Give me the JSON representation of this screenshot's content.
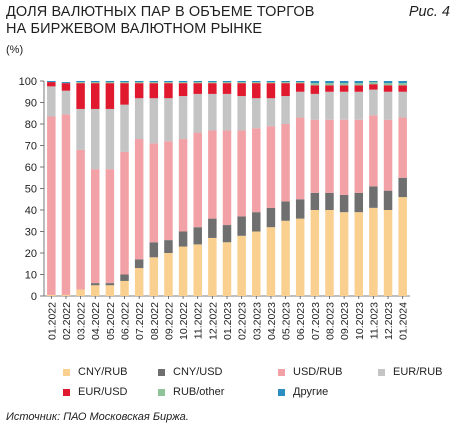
{
  "header": {
    "title_line1": "ДОЛЯ ВАЛЮТНЫХ ПАР В ОБЪЕМЕ ТОРГОВ",
    "title_line2": "НА БИРЖЕВОМ ВАЛЮТНОМ РЫНКЕ",
    "figure_label": "Рис. 4",
    "unit": "(%)"
  },
  "source": "Источник: ПАО Московская Биржа.",
  "chart_data": {
    "type": "bar",
    "stacked": true,
    "ylim": [
      0,
      100
    ],
    "yticks": [
      0,
      10,
      20,
      30,
      40,
      50,
      60,
      70,
      80,
      90,
      100
    ],
    "grid": false,
    "legend_position": "bottom",
    "categories": [
      "01.2022",
      "02.2022",
      "03.2022",
      "04.2022",
      "05.2022",
      "06.2022",
      "07.2022",
      "08.2022",
      "09.2022",
      "10.2022",
      "11.2022",
      "12.2022",
      "01.2023",
      "02.2023",
      "03.2023",
      "04.2023",
      "05.2023",
      "06.2023",
      "07.2023",
      "08.2023",
      "09.2023",
      "10.2023",
      "11.2023",
      "12.2023",
      "01.2024"
    ],
    "series": [
      {
        "name": "CNY/RUB",
        "color": "#f9d08f",
        "values": [
          0.5,
          0.5,
          3,
          5,
          5,
          7,
          13,
          18,
          20,
          23,
          24,
          27,
          25,
          28,
          30,
          32,
          35,
          36,
          40,
          40,
          39,
          39,
          41,
          40,
          46
        ]
      },
      {
        "name": "CNY/USD",
        "color": "#6f6f6f",
        "values": [
          0,
          0,
          0,
          1,
          1,
          3,
          4,
          7,
          6,
          7,
          8,
          9,
          8,
          9,
          9,
          9,
          9,
          9,
          8,
          8,
          8,
          9,
          10,
          9,
          9
        ]
      },
      {
        "name": "USD/RUB",
        "color": "#f2a1a6",
        "values": [
          83,
          84,
          65,
          53,
          53,
          57,
          56,
          46,
          46,
          43,
          44,
          41,
          44,
          40,
          39,
          38,
          36,
          38,
          34,
          34,
          35,
          34,
          33,
          33,
          28
        ]
      },
      {
        "name": "EUR/RUB",
        "color": "#c4c4c4",
        "values": [
          14,
          11,
          19,
          28,
          28,
          22,
          19,
          21,
          20,
          20,
          18,
          17,
          17,
          16,
          14,
          13,
          13,
          12,
          12,
          13,
          13,
          13,
          12,
          13,
          12
        ]
      },
      {
        "name": "EUR/USD",
        "color": "#e1192f",
        "values": [
          2,
          3.5,
          12,
          12,
          12,
          10,
          7,
          7,
          7,
          6,
          5,
          5,
          5,
          6,
          7,
          7,
          6,
          4,
          4,
          3,
          3,
          3,
          2.5,
          3,
          3
        ]
      },
      {
        "name": "RUB/other",
        "color": "#8fc49a",
        "values": [
          0,
          0,
          0.5,
          0.5,
          0.5,
          0.5,
          0.5,
          0.5,
          0.5,
          0.5,
          0.5,
          0.5,
          0.5,
          0.5,
          0.5,
          0.5,
          0.5,
          0.5,
          1,
          1,
          1,
          1,
          1,
          1,
          1
        ]
      },
      {
        "name": "Другие",
        "color": "#2a8fc0",
        "values": [
          0.5,
          0.5,
          0.5,
          0.5,
          0.5,
          0.5,
          0.5,
          0.5,
          0.5,
          0.5,
          0.5,
          0.5,
          0.5,
          0.5,
          0.5,
          0.5,
          0.5,
          0.5,
          1,
          1,
          1,
          1,
          0.5,
          1,
          1
        ]
      }
    ]
  }
}
